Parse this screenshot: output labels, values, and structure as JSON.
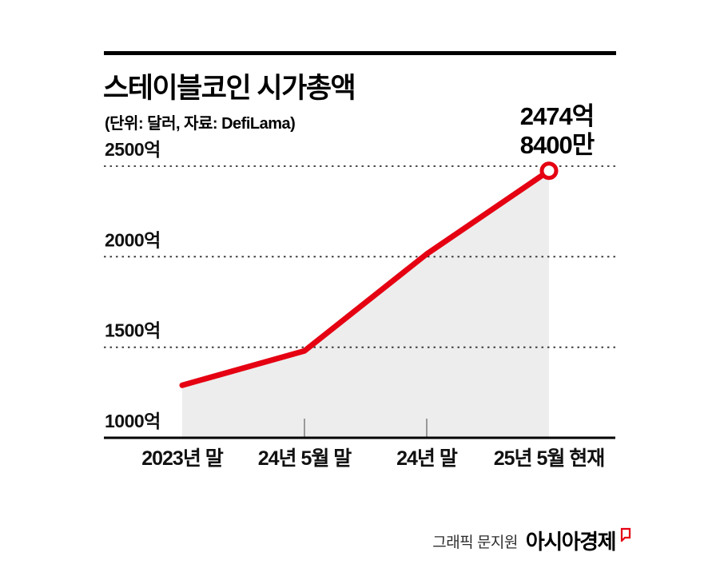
{
  "header": {
    "title": "스테이블코인 시가총액",
    "subtitle": "(단위: 달러, 자료: DefiLama)"
  },
  "annotation": {
    "line1": "2474억",
    "line2": "8400만"
  },
  "footer": {
    "credit": "그래픽 문지원",
    "brand": "아시아경제"
  },
  "colors": {
    "line_red": "#e50012",
    "area_gray": "#ededed",
    "axis_black": "#000000"
  },
  "chart_data": {
    "type": "line",
    "title": "스테이블코인 시가총액",
    "subtitle": "(단위: 달러, 자료: DefiLama)",
    "categories": [
      "2023년 말",
      "24년 5월 말",
      "24년 말",
      "25년 5월 현재"
    ],
    "values": [
      1290,
      1480,
      2015,
      2474.84
    ],
    "ylim": [
      1000,
      2600
    ],
    "yticks": [
      {
        "label": "2500억",
        "value": 2500
      },
      {
        "label": "2000억",
        "value": 2000
      },
      {
        "label": "1500억",
        "value": 1500
      },
      {
        "label": "1000억",
        "value": 1000
      }
    ],
    "gridlines_dotted": [
      2500,
      2000,
      1500
    ],
    "grid": "dotted-horizontal",
    "legend": "none",
    "annotation_text": "2474억 8400만",
    "endpoint_marker": "open-circle",
    "line_color": "#e50012",
    "area_color": "#ededed"
  }
}
